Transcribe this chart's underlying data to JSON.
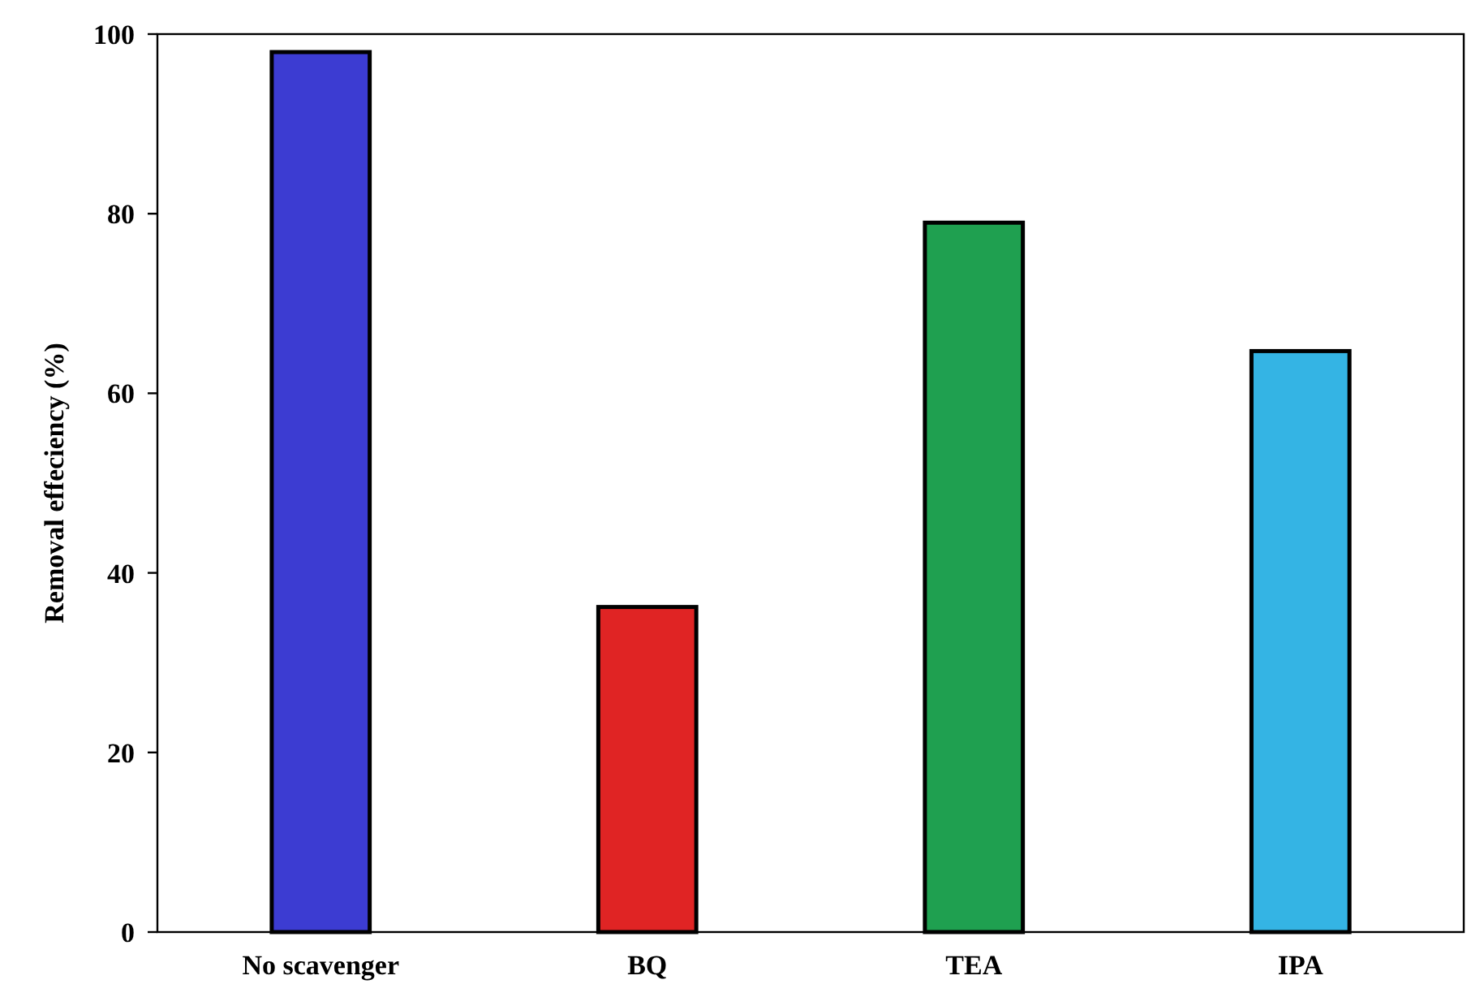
{
  "chart_data": {
    "type": "bar",
    "ylabel": "Removal effeciency (%)",
    "categories": [
      "No scavenger",
      "BQ",
      "TEA",
      "IPA"
    ],
    "values": [
      98,
      36.2,
      79,
      64.7
    ],
    "colors": [
      "#3c3cd2",
      "#e02424",
      "#1fa050",
      "#34b4e4"
    ],
    "ylim": [
      0,
      100
    ],
    "yticks": [
      0,
      20,
      40,
      60,
      80,
      100
    ],
    "grid": false
  }
}
